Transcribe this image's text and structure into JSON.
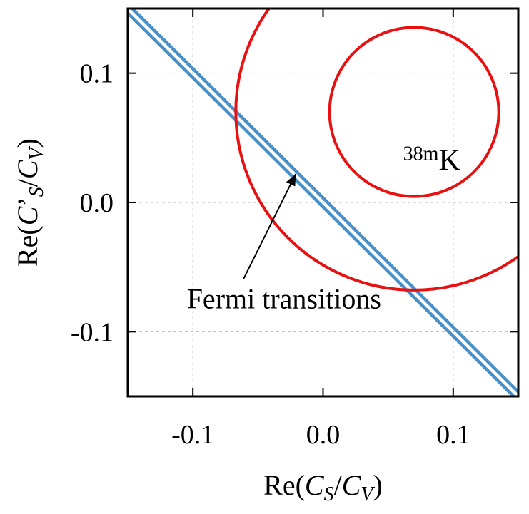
{
  "chart_data": {
    "type": "line",
    "title": "",
    "xlabel": "Re(C_S/C_V)",
    "ylabel": "Re(C'_S/C_V)",
    "xlim": [
      -0.15,
      0.15
    ],
    "ylim": [
      -0.15,
      0.15
    ],
    "x_ticks": [
      -0.1,
      0.0,
      0.1
    ],
    "y_ticks": [
      -0.1,
      0.0,
      0.1
    ],
    "x_tick_labels": [
      "-0.1",
      "0.0",
      "0.1"
    ],
    "y_tick_labels": [
      "-0.1",
      "0.0",
      "0.1"
    ],
    "grid": true,
    "legend": "none",
    "series": [
      {
        "name": "Fermi transitions",
        "kind": "band",
        "color": "#4a90c8",
        "lines": [
          {
            "x": [
              -0.15,
              0.15
            ],
            "y": [
              0.1535,
              -0.1465
            ]
          },
          {
            "x": [
              -0.15,
              0.15
            ],
            "y": [
              0.1465,
              -0.1535
            ]
          }
        ]
      },
      {
        "name": "38mK",
        "kind": "circle",
        "color": "#e81010",
        "center": [
          0.07,
          0.07
        ],
        "radius": 0.065
      },
      {
        "kind": "circle",
        "color": "#e81010",
        "center": [
          0.07,
          0.07
        ],
        "radius": 0.137
      }
    ],
    "annotations": [
      {
        "text_sup": "38m",
        "text_main": "K",
        "x": 0.0835,
        "y": 0.025
      },
      {
        "text": "Fermi transitions",
        "x": -0.03,
        "y": -0.082,
        "arrow_from": [
          -0.061,
          -0.059
        ],
        "arrow_to": [
          -0.021,
          0.022
        ]
      }
    ]
  }
}
